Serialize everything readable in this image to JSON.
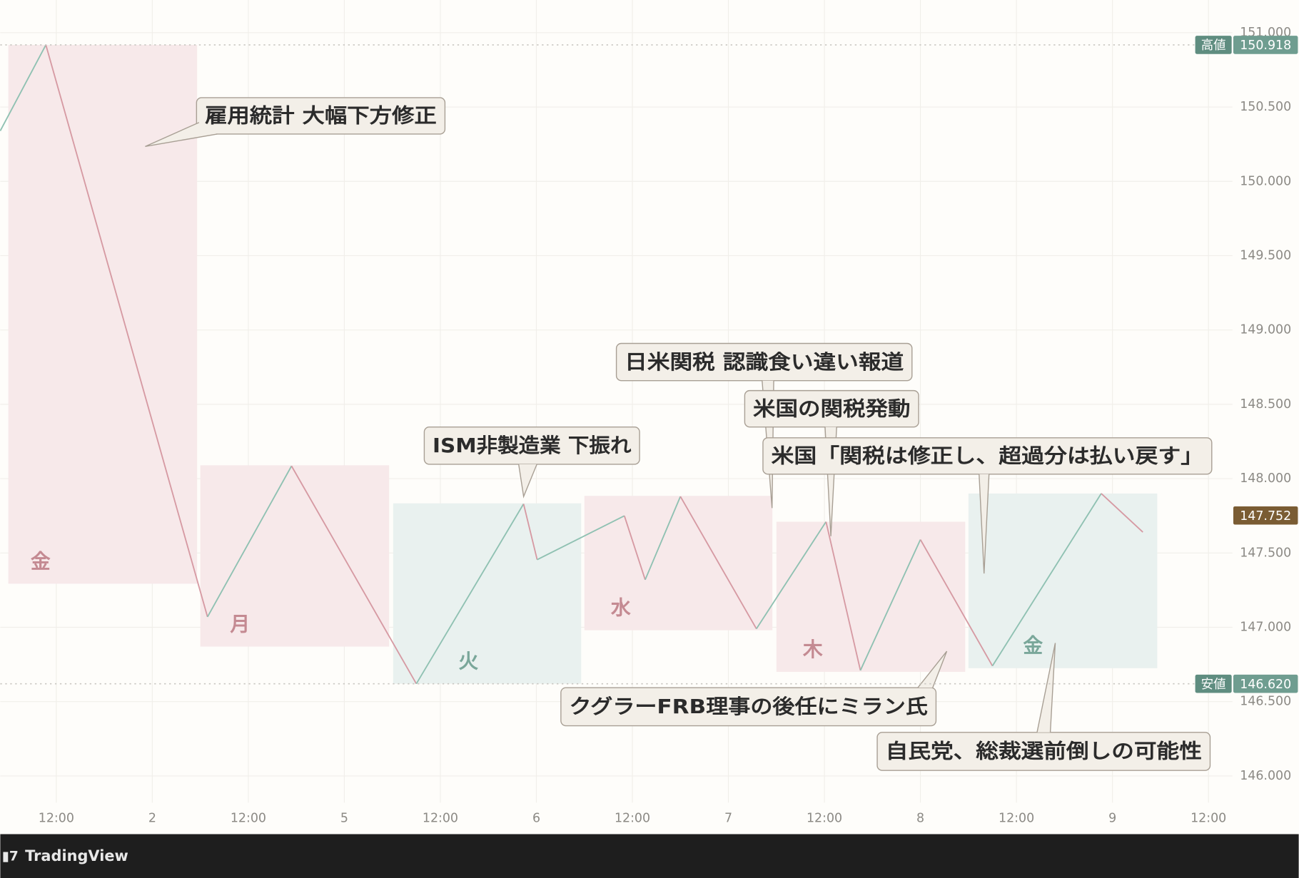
{
  "chart_data": {
    "type": "line",
    "xlim": [
      5,
      159
    ],
    "ylim": [
      145.82,
      151.22
    ],
    "grid": true,
    "xticks": [
      {
        "value": 12,
        "label": "12:00"
      },
      {
        "value": 24,
        "label": "2"
      },
      {
        "value": 36,
        "label": "12:00"
      },
      {
        "value": 48,
        "label": "5"
      },
      {
        "value": 60,
        "label": "12:00"
      },
      {
        "value": 72,
        "label": "6"
      },
      {
        "value": 84,
        "label": "12:00"
      },
      {
        "value": 96,
        "label": "7"
      },
      {
        "value": 108,
        "label": "12:00"
      },
      {
        "value": 120,
        "label": "8"
      },
      {
        "value": 132,
        "label": "12:00"
      },
      {
        "value": 144,
        "label": "9"
      },
      {
        "value": 156,
        "label": "12:00"
      }
    ],
    "yticks": [
      {
        "value": 151,
        "label": "151.000"
      },
      {
        "value": 150.5,
        "label": "150.500"
      },
      {
        "value": 150,
        "label": "150.000"
      },
      {
        "value": 149.5,
        "label": "149.500"
      },
      {
        "value": 149,
        "label": "149.000"
      },
      {
        "value": 148.5,
        "label": "148.500"
      },
      {
        "value": 148,
        "label": "148.000"
      },
      {
        "value": 147.5,
        "label": "147.500"
      },
      {
        "value": 147,
        "label": "147.000"
      },
      {
        "value": 146.5,
        "label": "146.500"
      },
      {
        "value": 146,
        "label": "146.000"
      }
    ],
    "series": [
      {
        "color_up": "#8fc1b2",
        "color_down": "#d69aa3",
        "x": [
          5.0,
          10.7,
          30.9,
          41.4,
          57.0,
          70.4,
          72.1,
          83.0,
          85.6,
          90.0,
          99.5,
          108.2,
          112.5,
          120.0,
          129.0,
          142.6,
          147.8
        ],
        "values": [
          150.34,
          150.918,
          147.07,
          148.085,
          146.62,
          147.83,
          147.455,
          147.75,
          147.32,
          147.88,
          146.99,
          147.71,
          146.71,
          147.59,
          146.74,
          147.9,
          147.64
        ]
      }
    ],
    "day_boxes": [
      {
        "label": "金",
        "x": [
          6.0,
          29.6
        ],
        "range": [
          147.293,
          150.918
        ],
        "color": "#f7e9ea",
        "label_color": "#c48a92"
      },
      {
        "label": "月",
        "x": [
          30.0,
          53.6
        ],
        "range": [
          146.87,
          148.09
        ],
        "color": "#f7e9ea",
        "label_color": "#c48a92"
      },
      {
        "label": "火",
        "x": [
          54.1,
          77.6
        ],
        "range": [
          146.62,
          147.834
        ],
        "color": "#e9f1ef",
        "label_color": "#7aa79a"
      },
      {
        "label": "水",
        "x": [
          78.0,
          101.5
        ],
        "range": [
          146.98,
          147.884
        ],
        "color": "#f7e9ea",
        "label_color": "#c48a92"
      },
      {
        "label": "木",
        "x": [
          102.0,
          125.6
        ],
        "range": [
          146.7,
          147.71
        ],
        "color": "#f7e9ea",
        "label_color": "#c48a92"
      },
      {
        "label": "金",
        "x": [
          126.0,
          149.6
        ],
        "range": [
          146.725,
          147.9
        ],
        "color": "#e9f1ef",
        "label_color": "#7aa79a"
      }
    ],
    "annotations": [
      {
        "text": "雇用統計 大幅下方修正"
      },
      {
        "text": "ISM非製造業 下振れ"
      },
      {
        "text": "日米関税 認識食い違い報道"
      },
      {
        "text": "米国の関税発動"
      },
      {
        "text": "米国「関税は修正し、超過分は払い戻す」"
      },
      {
        "text": "クグラーFRB理事の後任にミラン氏"
      },
      {
        "text": "自民党、総裁選前倒しの可能性"
      }
    ],
    "price_tags": [
      {
        "label": "高値",
        "value": 150.918,
        "color": "#6f9d90",
        "label_bg": "#5f8d80",
        "dotted": true
      },
      {
        "label": "安値",
        "value": 146.62,
        "value_label": "146.620",
        "color": "#6f9d90",
        "label_bg": "#5f8d80",
        "dotted": true
      },
      {
        "value": 147.752,
        "color": "#7a5c33"
      }
    ]
  },
  "footer": {
    "brand": "TradingView"
  }
}
